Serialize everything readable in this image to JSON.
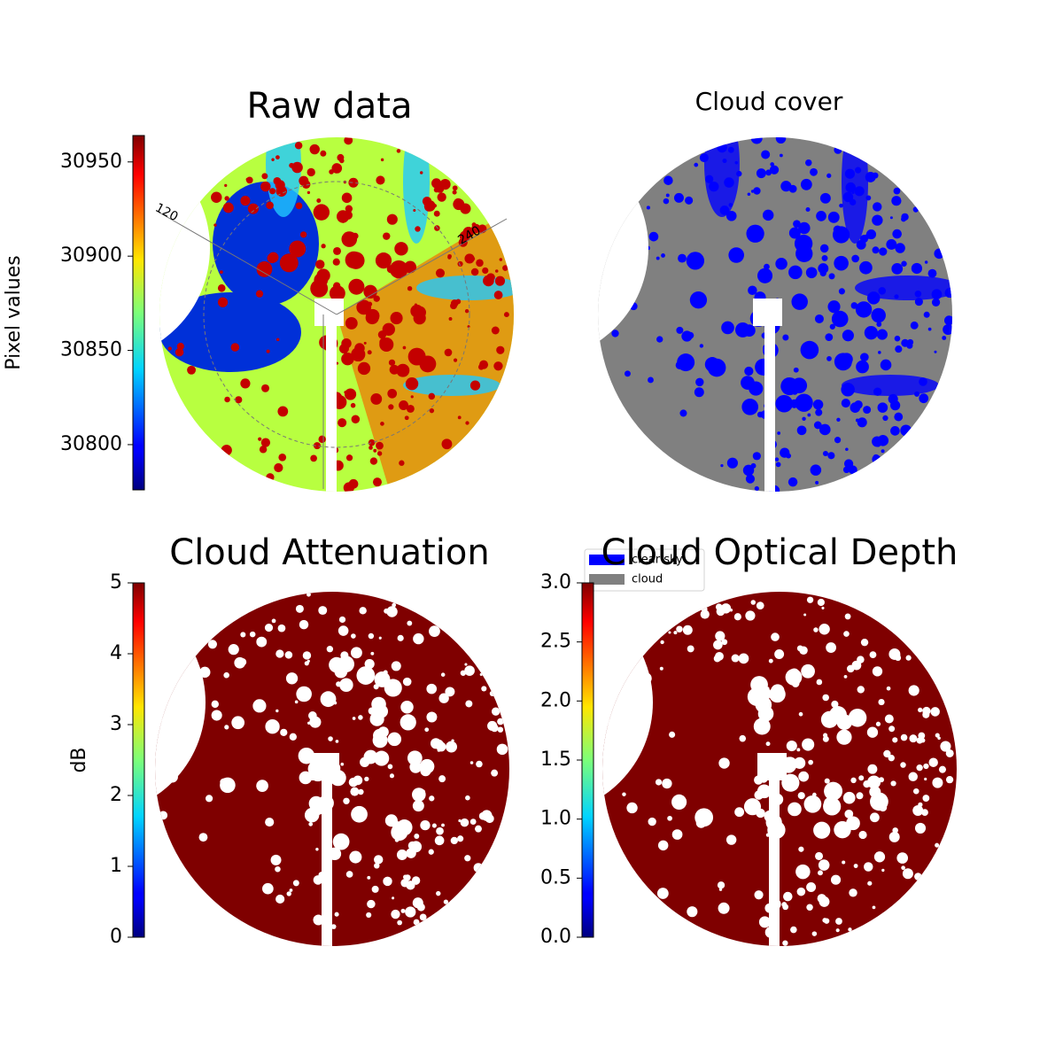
{
  "chart_data": [
    {
      "type": "image",
      "title": "Raw data",
      "ylabel": "Pixel values",
      "colormap": "jet",
      "ylim": [
        30776,
        30964
      ],
      "yticks": [
        30800,
        30850,
        30900,
        30950
      ],
      "annotations": [
        "120",
        "240"
      ]
    },
    {
      "type": "image",
      "title": "Cloud cover",
      "series": [
        {
          "name": "clear sky",
          "color": "#0000ff"
        },
        {
          "name": "cloud",
          "color": "#808080"
        }
      ]
    },
    {
      "type": "image",
      "title": "Cloud Attenuation",
      "ylabel": "dB",
      "colormap": "jet",
      "ylim": [
        0,
        5
      ],
      "yticks": [
        0,
        1,
        2,
        3,
        4,
        5
      ]
    },
    {
      "type": "image",
      "title": "Cloud Optical Depth",
      "colormap": "jet",
      "ylim": [
        0,
        3
      ],
      "yticks": [
        {
          "value": 0,
          "label": "0.0"
        },
        {
          "value": 0.5,
          "label": "0.5"
        },
        {
          "value": 1,
          "label": "1.0"
        },
        {
          "value": 1.5,
          "label": "1.5"
        },
        {
          "value": 2,
          "label": "2.0"
        },
        {
          "value": 2.5,
          "label": "2.5"
        },
        {
          "value": 3,
          "label": "3.0"
        }
      ]
    }
  ]
}
